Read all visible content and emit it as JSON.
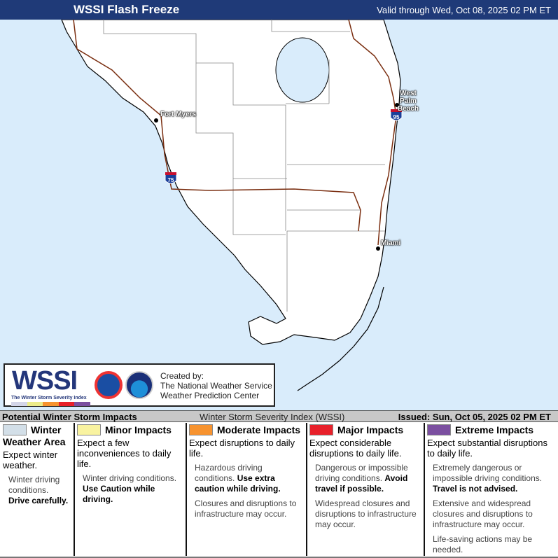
{
  "header": {
    "title": "WSSI Flash Freeze",
    "valid": "Valid through Wed, Oct 08, 2025 02 PM ET"
  },
  "map": {
    "cities": [
      "Fort Myers",
      "West Palm Beach",
      "Miami"
    ],
    "highways": [
      "75",
      "95"
    ],
    "colors": {
      "water": "#d9ecfb",
      "land": "#ffffff",
      "roads": "#7a2e10",
      "counties": "#777777"
    }
  },
  "logo": {
    "wordmark": "WSSI",
    "tagline": "The Winter Storm Severity Index",
    "created_by": "Created by:",
    "org1": "The National Weather Service",
    "org2": "Weather Prediction Center",
    "nws_seal": "NATIONAL WEATHER SERVICE",
    "noaa_seal": "NOAA"
  },
  "band": {
    "left": "Potential Winter Storm Impacts",
    "center": "Winter Storm Severity Index (WSSI)",
    "issued": "Issued: Sun, Oct 05, 2025 02 PM ET"
  },
  "legend": [
    {
      "title": "Winter Weather Area",
      "color": "#d3dfe8",
      "expect": "Expect winter weather.",
      "bullets": [
        [
          "Winter driving conditions. ",
          "Drive carefully."
        ]
      ]
    },
    {
      "title": "Minor Impacts",
      "color": "#f9f3a0",
      "expect": "Expect a few inconveniences to daily life.",
      "bullets": [
        [
          "Winter driving conditions. ",
          "Use Caution while driving."
        ]
      ]
    },
    {
      "title": "Moderate Impacts",
      "color": "#f7932f",
      "expect": "Expect disruptions to daily life.",
      "bullets": [
        [
          "Hazardous driving conditions. ",
          "Use extra caution while driving."
        ],
        [
          "Closures and disruptions to infrastructure may occur.",
          ""
        ]
      ]
    },
    {
      "title": "Major Impacts",
      "color": "#e8202a",
      "expect": "Expect considerable disruptions to daily life.",
      "bullets": [
        [
          "Dangerous or impossible driving conditions. ",
          "Avoid travel if possible."
        ],
        [
          "Widespread closures and disruptions to infrastructure may occur.",
          ""
        ]
      ]
    },
    {
      "title": "Extreme Impacts",
      "color": "#7b4fa0",
      "expect": "Expect substantial disruptions to daily life.",
      "bullets": [
        [
          "Extremely dangerous or impossible driving conditions. ",
          "Travel is not advised."
        ],
        [
          "Extensive and widespread closures and disruptions to infrastructure may occur.",
          ""
        ],
        [
          "Life-saving actions may be needed.",
          ""
        ]
      ]
    }
  ]
}
